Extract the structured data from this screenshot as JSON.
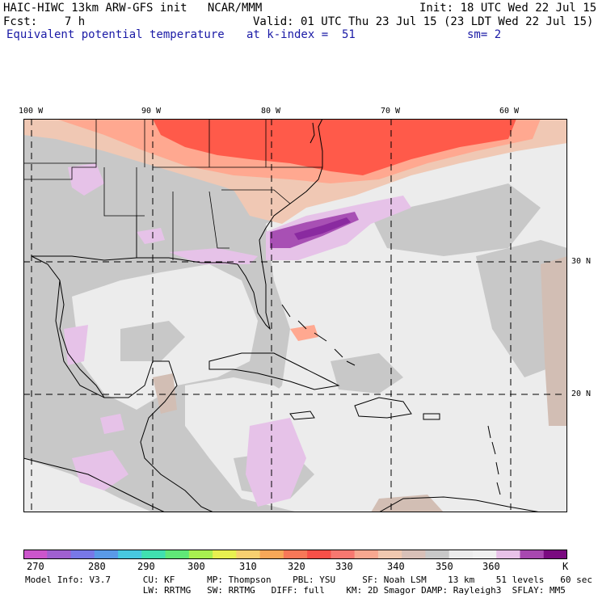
{
  "header": {
    "line1_left": "HAIC-HIWC 13km ARW-GFS init   NCAR/MMM",
    "line1_right": "Init: 18 UTC Wed 22 Jul 15",
    "line2_left": "Fcst:    7 h",
    "line2_right": "Valid: 01 UTC Thu 23 Jul 15 (23 LDT Wed 22 Jul 15)",
    "line3_field": "Equivalent potential temperature",
    "line3_level": "at k-index =  51",
    "line3_smooth": "sm= 2"
  },
  "map": {
    "lon_labels": [
      "100 W",
      "90 W",
      "80 W",
      "70 W",
      "60 W"
    ],
    "lat_labels": [
      "30 N",
      "20 N"
    ],
    "colors": {
      "land_gray": "#c8c8c8",
      "sea_light": "#ececec",
      "warm_red": "#ff5a4a",
      "warm_salmon": "#ffa890",
      "warm_peach": "#f0c8b4",
      "tan": "#d2beb4",
      "lavender": "#e6c2e8",
      "purple": "#a850b4",
      "dark_purple": "#8a2aa0"
    }
  },
  "colorbar": {
    "colors": [
      "#cc55cc",
      "#a060d0",
      "#7878e8",
      "#5a9ae8",
      "#48c8e0",
      "#40e0b0",
      "#60e878",
      "#a8f050",
      "#e8f050",
      "#f8d070",
      "#f8a858",
      "#f87858",
      "#f85048",
      "#f87870",
      "#f8a890",
      "#f0c8b0",
      "#d8c0b8",
      "#c8c8c8",
      "#ececec",
      "#f0f0f0",
      "#e8c2e8",
      "#a848b0",
      "#7a0a80"
    ],
    "tick_labels": [
      "270",
      "280",
      "290",
      "300",
      "310",
      "320",
      "330",
      "340",
      "350",
      "360",
      "K"
    ]
  },
  "footer": {
    "line1": "Model Info: V3.7      CU: KF      MP: Thompson    PBL: YSU     SF: Noah LSM    13 km    51 levels   60 sec",
    "line2": "                      LW: RRTMG   SW: RRTMG   DIFF: full    KM: 2D Smagor DAMP: Rayleigh3  SFLAY: MM5"
  }
}
